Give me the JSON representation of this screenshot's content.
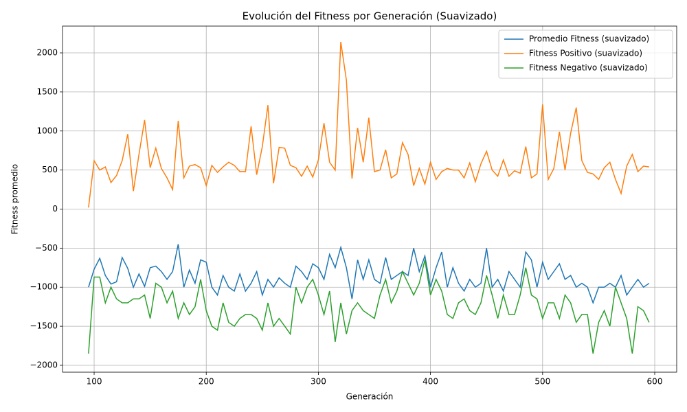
{
  "chart_data": {
    "type": "line",
    "title": "Evolución del Fitness por Generación (Suavizado)",
    "x_label": "Generación",
    "y_label": "Fitness promedio",
    "xlim": [
      71.8,
      619.6
    ],
    "ylim": [
      -2088,
      2343
    ],
    "xticks": [
      100,
      200,
      300,
      400,
      500,
      600
    ],
    "yticks": [
      {
        "value": -2000,
        "label": "−2000"
      },
      {
        "value": -1500,
        "label": "−1500"
      },
      {
        "value": -1000,
        "label": "−1000"
      },
      {
        "value": -500,
        "label": "−500"
      },
      0,
      500,
      1000,
      1500,
      2000
    ],
    "grid": true,
    "legend_position": "upper-right",
    "x": [
      95,
      100,
      105,
      110,
      115,
      120,
      125,
      130,
      135,
      140,
      145,
      150,
      155,
      160,
      165,
      170,
      175,
      180,
      185,
      190,
      195,
      200,
      205,
      210,
      215,
      220,
      225,
      230,
      235,
      240,
      245,
      250,
      255,
      260,
      265,
      270,
      275,
      280,
      285,
      290,
      295,
      300,
      305,
      310,
      315,
      320,
      325,
      330,
      335,
      340,
      345,
      350,
      355,
      360,
      365,
      370,
      375,
      380,
      385,
      390,
      395,
      400,
      405,
      410,
      415,
      420,
      425,
      430,
      435,
      440,
      445,
      450,
      455,
      460,
      465,
      470,
      475,
      480,
      485,
      490,
      495,
      500,
      505,
      510,
      515,
      520,
      525,
      530,
      535,
      540,
      545,
      550,
      555,
      560,
      565,
      570,
      575,
      580,
      585,
      590,
      595
    ],
    "series": [
      {
        "name": "Promedio Fitness (suavizado)",
        "color": "#1f77b4",
        "values": [
          -1000,
          -770,
          -630,
          -850,
          -960,
          -930,
          -620,
          -760,
          -1000,
          -830,
          -990,
          -750,
          -730,
          -800,
          -900,
          -800,
          -450,
          -1000,
          -780,
          -950,
          -650,
          -680,
          -1000,
          -1100,
          -850,
          -1000,
          -1050,
          -830,
          -1050,
          -950,
          -800,
          -1100,
          -900,
          -1000,
          -880,
          -950,
          -1000,
          -730,
          -800,
          -900,
          -700,
          -750,
          -900,
          -580,
          -750,
          -490,
          -750,
          -1150,
          -650,
          -900,
          -650,
          -900,
          -950,
          -620,
          -900,
          -850,
          -800,
          -850,
          -500,
          -800,
          -600,
          -1000,
          -750,
          -550,
          -1000,
          -750,
          -950,
          -1050,
          -900,
          -1000,
          -950,
          -500,
          -1000,
          -900,
          -1050,
          -800,
          -900,
          -1000,
          -550,
          -650,
          -1000,
          -680,
          -900,
          -800,
          -700,
          -900,
          -850,
          -1000,
          -950,
          -1000,
          -1200,
          -1000,
          -1000,
          -950,
          -1000,
          -850,
          -1100,
          -1000,
          -900,
          -1000,
          -950
        ]
      },
      {
        "name": "Fitness Positivo (suavizado)",
        "color": "#ff7f0e",
        "values": [
          20,
          620,
          500,
          540,
          340,
          430,
          620,
          960,
          230,
          700,
          1140,
          530,
          780,
          520,
          400,
          250,
          1130,
          400,
          550,
          570,
          530,
          300,
          560,
          470,
          540,
          600,
          560,
          480,
          480,
          1060,
          440,
          800,
          1330,
          330,
          790,
          780,
          560,
          530,
          420,
          550,
          410,
          630,
          1100,
          600,
          500,
          2140,
          1650,
          390,
          1040,
          600,
          1170,
          480,
          500,
          760,
          400,
          450,
          850,
          700,
          300,
          520,
          320,
          600,
          380,
          480,
          520,
          500,
          500,
          400,
          590,
          350,
          580,
          740,
          500,
          420,
          630,
          420,
          490,
          460,
          800,
          400,
          450,
          1340,
          380,
          520,
          990,
          500,
          970,
          1300,
          620,
          470,
          450,
          380,
          530,
          600,
          380,
          200,
          550,
          700,
          480,
          550,
          540
        ]
      },
      {
        "name": "Fitness Negativo (suavizado)",
        "color": "#2ca02c",
        "values": [
          -1850,
          -870,
          -870,
          -1200,
          -1000,
          -1150,
          -1200,
          -1200,
          -1150,
          -1150,
          -1100,
          -1400,
          -950,
          -1000,
          -1200,
          -1050,
          -1400,
          -1200,
          -1350,
          -1250,
          -900,
          -1300,
          -1500,
          -1550,
          -1200,
          -1450,
          -1500,
          -1400,
          -1350,
          -1350,
          -1400,
          -1550,
          -1200,
          -1500,
          -1400,
          -1500,
          -1600,
          -1000,
          -1200,
          -1000,
          -900,
          -1100,
          -1350,
          -1050,
          -1700,
          -1200,
          -1600,
          -1300,
          -1200,
          -1300,
          -1350,
          -1400,
          -1100,
          -900,
          -1200,
          -1050,
          -800,
          -950,
          -1100,
          -950,
          -650,
          -1100,
          -900,
          -1050,
          -1350,
          -1400,
          -1200,
          -1150,
          -1300,
          -1350,
          -1200,
          -850,
          -1100,
          -1400,
          -1100,
          -1350,
          -1350,
          -1100,
          -750,
          -1100,
          -1150,
          -1400,
          -1200,
          -1200,
          -1400,
          -1100,
          -1200,
          -1450,
          -1350,
          -1350,
          -1850,
          -1450,
          -1300,
          -1500,
          -1000,
          -1200,
          -1400,
          -1850,
          -1250,
          -1300,
          -1450
        ]
      }
    ]
  }
}
